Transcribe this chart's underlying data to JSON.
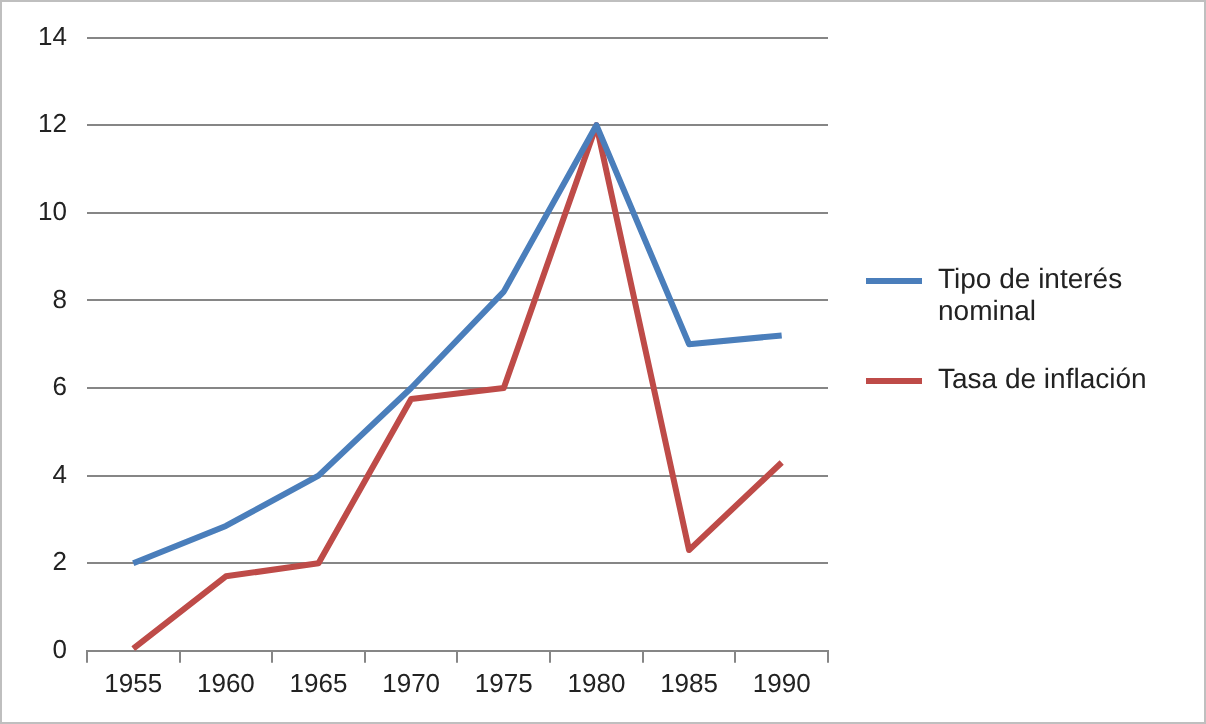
{
  "chart_data": {
    "type": "line",
    "categories": [
      "1955",
      "1960",
      "1965",
      "1970",
      "1975",
      "1980",
      "1985",
      "1990"
    ],
    "series": [
      {
        "name": "Tipo de interés nominal",
        "color": "#4a7ebb",
        "values": [
          2,
          2.85,
          4,
          6,
          8.2,
          12,
          7,
          7.2
        ]
      },
      {
        "name": "Tasa de inflación",
        "color": "#be4b48",
        "values": [
          0.05,
          1.7,
          2,
          5.75,
          6,
          12,
          2.3,
          4.3
        ]
      }
    ],
    "ylim": [
      0,
      14
    ],
    "yticks": [
      0,
      2,
      4,
      6,
      8,
      10,
      12,
      14
    ],
    "grid": "y",
    "legend": "right",
    "marker": "none",
    "line_style": "solid"
  }
}
